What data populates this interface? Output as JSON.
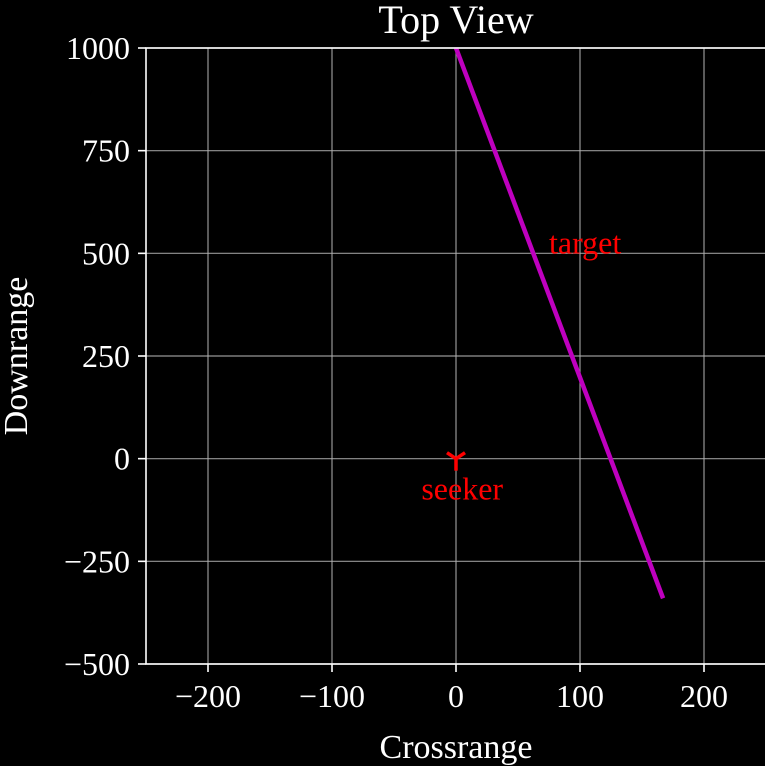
{
  "chart_data": {
    "type": "line",
    "title": "Top View",
    "xlabel": "Crossrange",
    "ylabel": "Downrange",
    "xlim": [
      -250,
      250
    ],
    "ylim": [
      -500,
      1000
    ],
    "xticks": [
      -200,
      -100,
      0,
      100,
      200
    ],
    "yticks": [
      -500,
      -250,
      0,
      250,
      500,
      750,
      1000
    ],
    "xtick_labels": [
      "−200",
      "−100",
      "0",
      "100",
      "200"
    ],
    "ytick_labels": [
      "−500",
      "−250",
      "0",
      "250",
      "500",
      "750",
      "1000"
    ],
    "grid": true,
    "series": [
      {
        "color": "#bf00bf",
        "x": [
          0,
          167
        ],
        "y": [
          1000,
          -340
        ]
      }
    ],
    "annotations": [
      {
        "text": "target",
        "x": 75,
        "y": 500,
        "color": "#ff0000"
      },
      {
        "text": "seeker",
        "x": 5,
        "y": -100,
        "color": "#ff0000"
      }
    ],
    "markers": [
      {
        "x": 0,
        "y": 0,
        "symbol": "tri-down",
        "color": "#ff0000"
      }
    ]
  }
}
